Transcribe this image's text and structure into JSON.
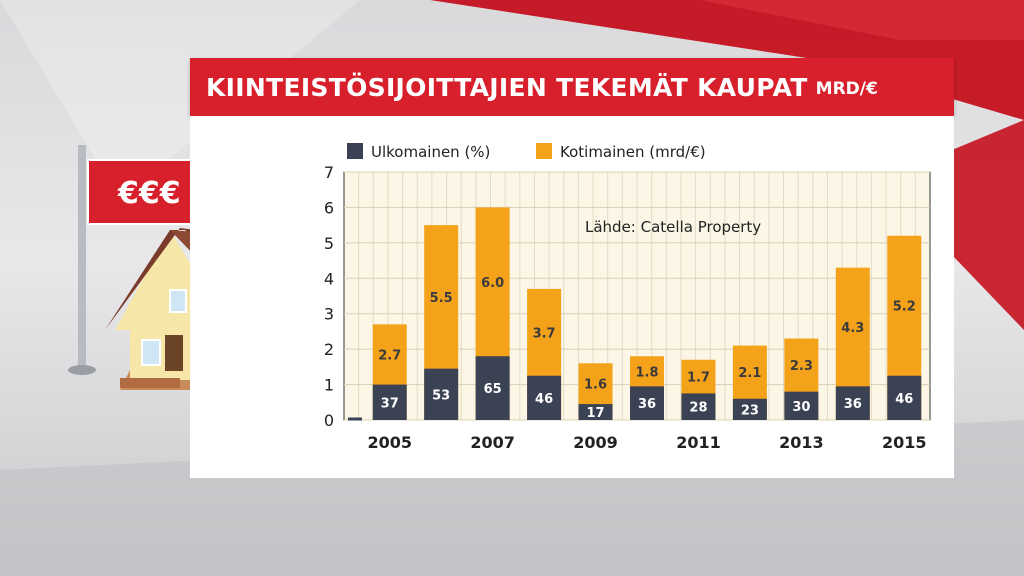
{
  "header": {
    "title": "KIINTEISTÖSIJOITTAJIEN TEKEMÄT KAUPAT",
    "unit": "MRD/€"
  },
  "sign": {
    "text": "€€€"
  },
  "colors": {
    "accent_red": "#d7202b",
    "series_domestic": "#f5a21b",
    "series_foreign": "#3b4254"
  },
  "chart_data": {
    "type": "bar",
    "stacked": true,
    "categories": [
      "2005",
      "2006",
      "2007",
      "2008",
      "2009",
      "2010",
      "2011",
      "2012",
      "2013",
      "2014",
      "2015"
    ],
    "x_tick_labels": [
      "2005",
      "2007",
      "2009",
      "2011",
      "2013",
      "2015"
    ],
    "ylim": [
      0,
      7
    ],
    "y_ticks": [
      0,
      1,
      2,
      3,
      4,
      5,
      6,
      7
    ],
    "grid": true,
    "legend_position": "top-left",
    "annotation": "Lähde: Catella Property",
    "totals_label_series": "Kotimainen (mrd/€)",
    "series": [
      {
        "name": "Ulkomainen (%)",
        "color": "#3b4254",
        "bar_values": [
          1.0,
          1.45,
          1.8,
          1.25,
          0.45,
          0.95,
          0.75,
          0.6,
          0.8,
          0.95,
          1.25
        ],
        "labels": [
          "37",
          "53",
          "65",
          "46",
          "17",
          "36",
          "28",
          "23",
          "30",
          "36",
          "46"
        ]
      },
      {
        "name": "Kotimainen (mrd/€)",
        "color": "#f5a21b",
        "totals": [
          2.7,
          5.5,
          6.0,
          3.7,
          1.6,
          1.8,
          1.7,
          2.1,
          2.3,
          4.3,
          5.2
        ],
        "labels": [
          "2.7",
          "5.5",
          "6.0",
          "3.7",
          "1.6",
          "1.8",
          "1.7",
          "2.1",
          "2.3",
          "4.3",
          "5.2"
        ]
      }
    ]
  }
}
